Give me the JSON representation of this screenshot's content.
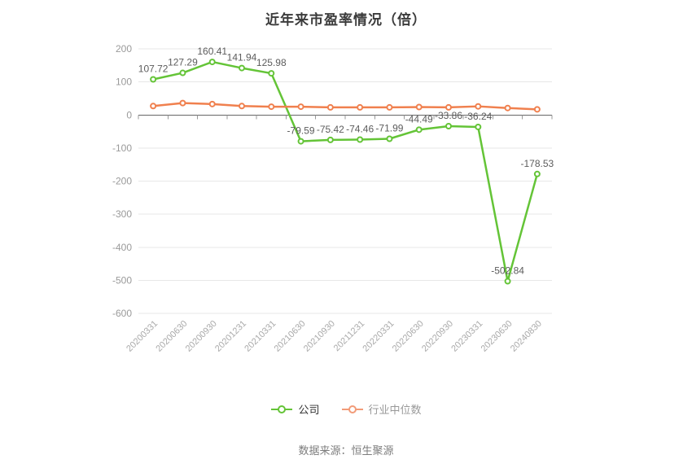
{
  "page": {
    "title": "近年来市盈率情况（倍）",
    "source": "数据来源：恒生聚源"
  },
  "chart_data": {
    "type": "line",
    "title": "近年来市盈率情况（倍）",
    "categories": [
      "20200331",
      "20200630",
      "20200930",
      "20201231",
      "20210331",
      "20210630",
      "20210930",
      "20211231",
      "20220331",
      "20220630",
      "20220930",
      "20230331",
      "20230630",
      "20240830"
    ],
    "series": [
      {
        "name": "公司",
        "color": "#64c437",
        "values": [
          107.72,
          127.29,
          160.41,
          141.94,
          125.98,
          -79.59,
          -75.42,
          -74.46,
          -71.99,
          -44.49,
          -33.86,
          -36.24,
          -502.84,
          -178.53
        ],
        "show_labels": true
      },
      {
        "name": "行业中位数",
        "color": "#f0804e",
        "values": [
          27,
          36,
          33,
          27,
          25,
          25,
          23,
          23,
          23,
          24,
          23,
          26,
          21,
          17
        ],
        "show_labels": false
      }
    ],
    "ylim": [
      -600,
      200
    ],
    "y_tick_interval": 100,
    "y_tick_labels": [
      "200",
      "100",
      "0",
      "-100",
      "-200",
      "-300",
      "-400",
      "-500",
      "-600"
    ],
    "grid": "horizontal-only",
    "legend_position": "bottom",
    "value_label_color": "#5c5c5c",
    "axis": {
      "grid_color": "#e7e7e7",
      "zero_line_color": "#666666",
      "tick_color": "#999999",
      "y_label_color": "#9a9a9a",
      "x_label_color": "#aaaaaa"
    }
  },
  "legend": {
    "items": [
      {
        "label": "公司",
        "color": "#64c437",
        "text_color": "#333333"
      },
      {
        "label": "行业中位数",
        "color": "#f29b78",
        "text_color": "#999999"
      }
    ]
  }
}
